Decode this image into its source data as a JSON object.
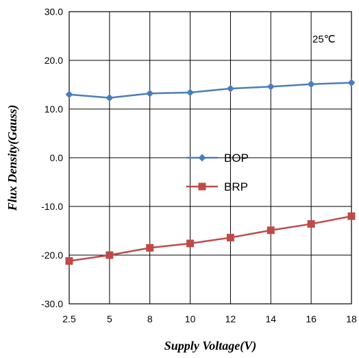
{
  "chart_data": {
    "type": "line",
    "categories": [
      "2.5",
      "5",
      "8",
      "10",
      "12",
      "14",
      "16",
      "18"
    ],
    "series": [
      {
        "name": "BOP",
        "values": [
          13.0,
          12.3,
          13.2,
          13.4,
          14.2,
          14.6,
          15.1,
          15.4
        ],
        "color": "#4a7ebb",
        "marker": "diamond"
      },
      {
        "name": "BRP",
        "values": [
          -21.2,
          -20.0,
          -18.5,
          -17.6,
          -16.4,
          -14.9,
          -13.6,
          -12.0
        ],
        "color": "#be4b48",
        "marker": "square"
      }
    ],
    "xlabel": "Supply Voltage(V)",
    "ylabel": "Flux Density(Gauss)",
    "ylim": [
      -30,
      30
    ],
    "yticks": [
      "30.0",
      "20.0",
      "10.0",
      "0.0",
      "-10.0",
      "-20.0",
      "-30.0"
    ],
    "annotation": "25℃",
    "grid": true,
    "legend_position": "center"
  }
}
